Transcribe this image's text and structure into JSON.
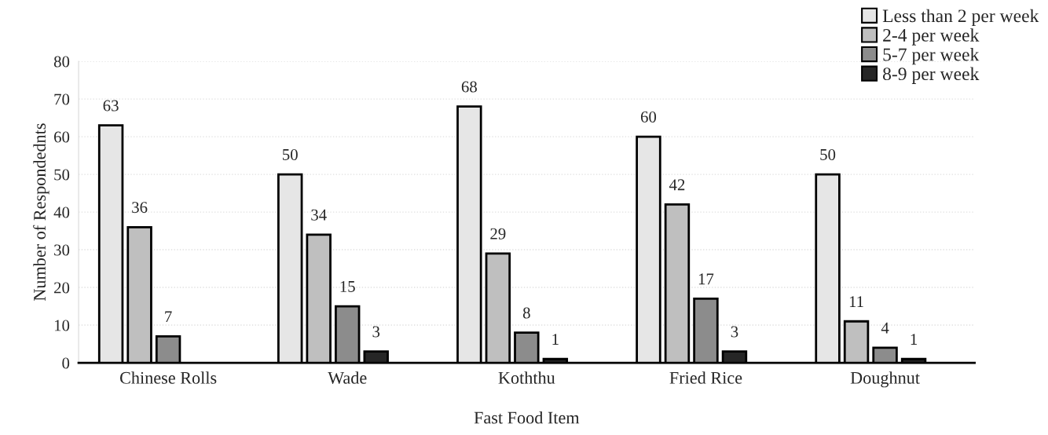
{
  "chart_data": {
    "type": "bar",
    "xlabel": "Fast Food Item",
    "ylabel": "Number of Respondednts",
    "categories": [
      "Chinese Rolls",
      "Wade",
      "Koththu",
      "Fried Rice",
      "Doughnut"
    ],
    "series": [
      {
        "name": "Less than 2 per week",
        "color": "#e6e6e6",
        "values": [
          63,
          50,
          68,
          60,
          50
        ]
      },
      {
        "name": "2-4 per week",
        "color": "#bfbfbf",
        "values": [
          36,
          34,
          29,
          42,
          11
        ]
      },
      {
        "name": "5-7 per week",
        "color": "#8c8c8c",
        "values": [
          7,
          15,
          8,
          17,
          4
        ]
      },
      {
        "name": "8-9 per week",
        "color": "#262626",
        "values": [
          null,
          3,
          1,
          3,
          1
        ]
      }
    ],
    "ylim": [
      0,
      80
    ],
    "yticks": [
      0,
      10,
      20,
      30,
      40,
      50,
      60,
      70,
      80
    ],
    "grid": "y",
    "legend": "top right",
    "data_labels": true
  }
}
